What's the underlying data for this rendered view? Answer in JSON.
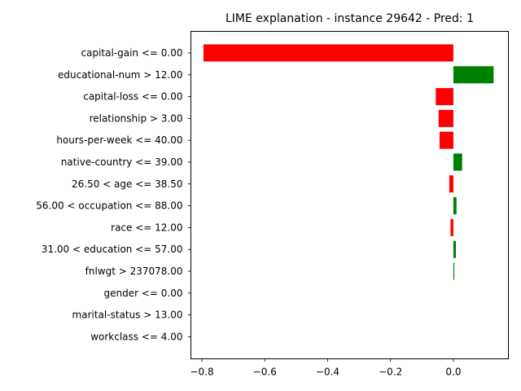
{
  "chart_data": {
    "type": "bar",
    "orientation": "horizontal",
    "title": "LIME explanation - instance 29642 - Pred: 1",
    "xlabel": "",
    "ylabel": "",
    "xlim": [
      -0.835,
      0.175
    ],
    "xticks": [
      -0.8,
      -0.6,
      -0.4,
      -0.2,
      0.0
    ],
    "xtick_labels": [
      "−0.8",
      "−0.6",
      "−0.4",
      "−0.2",
      "0.0"
    ],
    "grid": false,
    "categories": [
      "capital-gain <= 0.00",
      "educational-num > 12.00",
      "capital-loss <= 0.00",
      "relationship > 3.00",
      "hours-per-week <= 40.00",
      "native-country <= 39.00",
      "26.50 < age <= 38.50",
      "56.00 < occupation <= 88.00",
      "race <= 12.00",
      "31.00 < education <= 57.00",
      "fnlwgt > 237078.00",
      "gender <= 0.00",
      "marital-status > 13.00",
      "workclass <= 4.00"
    ],
    "values": [
      -0.795,
      0.128,
      -0.056,
      -0.047,
      -0.044,
      0.028,
      -0.013,
      0.01,
      -0.009,
      0.008,
      0.003,
      0.0,
      0.0,
      0.0
    ],
    "colors": {
      "positive": "#008000",
      "negative": "#ff0000"
    }
  }
}
